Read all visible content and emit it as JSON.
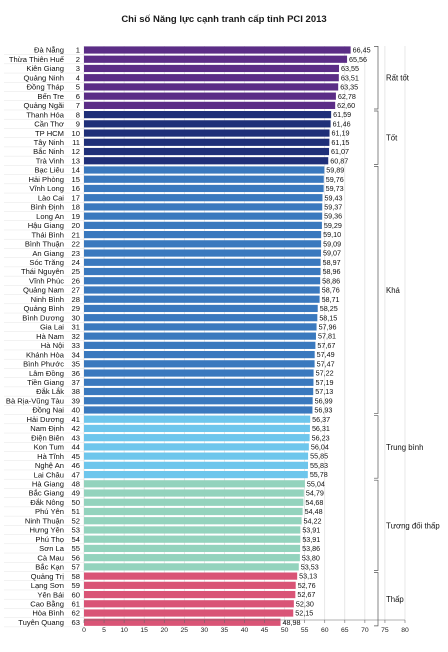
{
  "chart_data": {
    "type": "bar",
    "orientation": "horizontal",
    "title": "Chỉ số Năng lực cạnh tranh cấp tỉnh PCI 2013",
    "xlim": [
      0,
      80
    ],
    "xticks": [
      0,
      5,
      10,
      15,
      20,
      25,
      30,
      35,
      40,
      45,
      50,
      55,
      60,
      65,
      70,
      75,
      80
    ],
    "grid": true,
    "groups": [
      {
        "name": "Rất tốt",
        "color": "#5b2d86",
        "from": 0,
        "to": 6
      },
      {
        "name": "Tốt",
        "color": "#1f2f78",
        "from": 7,
        "to": 12
      },
      {
        "name": "Khá",
        "color": "#3a79be",
        "from": 13,
        "to": 39
      },
      {
        "name": "Trung bình",
        "color": "#6ec6ec",
        "from": 40,
        "to": 46
      },
      {
        "name": "Tương đối thấp",
        "color": "#93d3bd",
        "from": 47,
        "to": 56
      },
      {
        "name": "Thấp",
        "color": "#d95476",
        "from": 57,
        "to": 62
      }
    ],
    "rows": [
      {
        "province": "Đà Nẵng",
        "rank": "1",
        "value": 66.45,
        "label": "66,45"
      },
      {
        "province": "Thừa Thiên Huế",
        "rank": "2",
        "value": 65.56,
        "label": "65,56"
      },
      {
        "province": "Kiên Giang",
        "rank": "3",
        "value": 63.55,
        "label": "63,55"
      },
      {
        "province": "Quảng Ninh",
        "rank": "4",
        "value": 63.51,
        "label": "63,51"
      },
      {
        "province": "Đồng Tháp",
        "rank": "5",
        "value": 63.35,
        "label": "63,35"
      },
      {
        "province": "Bến Tre",
        "rank": "6",
        "value": 62.78,
        "label": "62,78"
      },
      {
        "province": "Quảng Ngãi",
        "rank": "7",
        "value": 62.6,
        "label": "62,60"
      },
      {
        "province": "Thanh Hóa",
        "rank": "8",
        "value": 61.59,
        "label": "61,59"
      },
      {
        "province": "Cần Thơ",
        "rank": "9",
        "value": 61.46,
        "label": "61,46"
      },
      {
        "province": "TP HCM",
        "rank": "10",
        "value": 61.19,
        "label": "61,19"
      },
      {
        "province": "Tây Ninh",
        "rank": "11",
        "value": 61.15,
        "label": "61,15"
      },
      {
        "province": "Bắc Ninh",
        "rank": "12",
        "value": 61.07,
        "label": "61,07"
      },
      {
        "province": "Trà Vinh",
        "rank": "13",
        "value": 60.87,
        "label": "60,87"
      },
      {
        "province": "Bạc Liêu",
        "rank": "14",
        "value": 59.89,
        "label": "59,89"
      },
      {
        "province": "Hải Phòng",
        "rank": "15",
        "value": 59.76,
        "label": "59,76"
      },
      {
        "province": "Vĩnh Long",
        "rank": "16",
        "value": 59.73,
        "label": "59,73"
      },
      {
        "province": "Lào Cai",
        "rank": "17",
        "value": 59.43,
        "label": "59,43"
      },
      {
        "province": "Bình Định",
        "rank": "18",
        "value": 59.37,
        "label": "59,37"
      },
      {
        "province": "Long An",
        "rank": "19",
        "value": 59.36,
        "label": "59,36"
      },
      {
        "province": "Hậu Giang",
        "rank": "20",
        "value": 59.29,
        "label": "59,29"
      },
      {
        "province": "Thái Bình",
        "rank": "21",
        "value": 59.1,
        "label": "59,10"
      },
      {
        "province": "Bình Thuận",
        "rank": "22",
        "value": 59.09,
        "label": "59,09"
      },
      {
        "province": "An Giang",
        "rank": "23",
        "value": 59.07,
        "label": "59,07"
      },
      {
        "province": "Sóc Trăng",
        "rank": "24",
        "value": 58.97,
        "label": "58,97"
      },
      {
        "province": "Thái Nguyên",
        "rank": "25",
        "value": 58.96,
        "label": "58,96"
      },
      {
        "province": "Vĩnh Phúc",
        "rank": "26",
        "value": 58.86,
        "label": "58,86"
      },
      {
        "province": "Quảng Nam",
        "rank": "27",
        "value": 58.76,
        "label": "58,76"
      },
      {
        "province": "Ninh Bình",
        "rank": "28",
        "value": 58.71,
        "label": "58,71"
      },
      {
        "province": "Quảng Bình",
        "rank": "29",
        "value": 58.25,
        "label": "58,25"
      },
      {
        "province": "Bình Dương",
        "rank": "30",
        "value": 58.15,
        "label": "58,15"
      },
      {
        "province": "Gia Lai",
        "rank": "31",
        "value": 57.96,
        "label": "57,96"
      },
      {
        "province": "Hà Nam",
        "rank": "32",
        "value": 57.81,
        "label": "57,81"
      },
      {
        "province": "Hà Nội",
        "rank": "33",
        "value": 57.67,
        "label": "57,67"
      },
      {
        "province": "Khánh Hòa",
        "rank": "34",
        "value": 57.49,
        "label": "57,49"
      },
      {
        "province": "Bình Phước",
        "rank": "35",
        "value": 57.47,
        "label": "57,47"
      },
      {
        "province": "Lâm Đồng",
        "rank": "36",
        "value": 57.22,
        "label": "57,22"
      },
      {
        "province": "Tiền Giang",
        "rank": "37",
        "value": 57.19,
        "label": "57,19"
      },
      {
        "province": "Đắk Lắk",
        "rank": "38",
        "value": 57.13,
        "label": "57,13"
      },
      {
        "province": "Bà Rịa-Vũng Tàu",
        "rank": "39",
        "value": 56.99,
        "label": "56,99"
      },
      {
        "province": "Đồng Nai",
        "rank": "40",
        "value": 56.93,
        "label": "56,93"
      },
      {
        "province": "Hải Dương",
        "rank": "41",
        "value": 56.37,
        "label": "56,37"
      },
      {
        "province": "Nam Định",
        "rank": "42",
        "value": 56.31,
        "label": "56,31"
      },
      {
        "province": "Điện Biên",
        "rank": "43",
        "value": 56.23,
        "label": "56,23"
      },
      {
        "province": "Kon Tum",
        "rank": "44",
        "value": 56.04,
        "label": "56,04"
      },
      {
        "province": "Hà Tĩnh",
        "rank": "45",
        "value": 55.85,
        "label": "55,85"
      },
      {
        "province": "Nghệ An",
        "rank": "46",
        "value": 55.83,
        "label": "55,83"
      },
      {
        "province": "Lai Châu",
        "rank": "47",
        "value": 55.78,
        "label": "55,78"
      },
      {
        "province": "Hà Giang",
        "rank": "48",
        "value": 55.04,
        "label": "55,04"
      },
      {
        "province": "Bắc Giang",
        "rank": "49",
        "value": 54.79,
        "label": "54,79"
      },
      {
        "province": "Đắk Nông",
        "rank": "50",
        "value": 54.68,
        "label": "54,68"
      },
      {
        "province": "Phú Yên",
        "rank": "51",
        "value": 54.48,
        "label": "54,48"
      },
      {
        "province": "Ninh Thuận",
        "rank": "52",
        "value": 54.22,
        "label": "54,22"
      },
      {
        "province": "Hưng Yên",
        "rank": "53",
        "value": 53.91,
        "label": "53,91"
      },
      {
        "province": "Phú Thọ",
        "rank": "54",
        "value": 53.91,
        "label": "53,91"
      },
      {
        "province": "Sơn La",
        "rank": "55",
        "value": 53.86,
        "label": "53,86"
      },
      {
        "province": "Cà Mau",
        "rank": "56",
        "value": 53.8,
        "label": "53,80"
      },
      {
        "province": "Bắc Kạn",
        "rank": "57",
        "value": 53.53,
        "label": "53,53"
      },
      {
        "province": "Quảng Trị",
        "rank": "58",
        "value": 53.13,
        "label": "53,13"
      },
      {
        "province": "Lạng Sơn",
        "rank": "59",
        "value": 52.76,
        "label": "52,76"
      },
      {
        "province": "Yên Bái",
        "rank": "60",
        "value": 52.67,
        "label": "52,67"
      },
      {
        "province": "Cao Bằng",
        "rank": "61",
        "value": 52.3,
        "label": "52,30"
      },
      {
        "province": "Hòa Bình",
        "rank": "62",
        "value": 52.15,
        "label": "52,15"
      },
      {
        "province": "Tuyên Quang",
        "rank": "63",
        "value": 48.98,
        "label": "48,98"
      }
    ]
  }
}
